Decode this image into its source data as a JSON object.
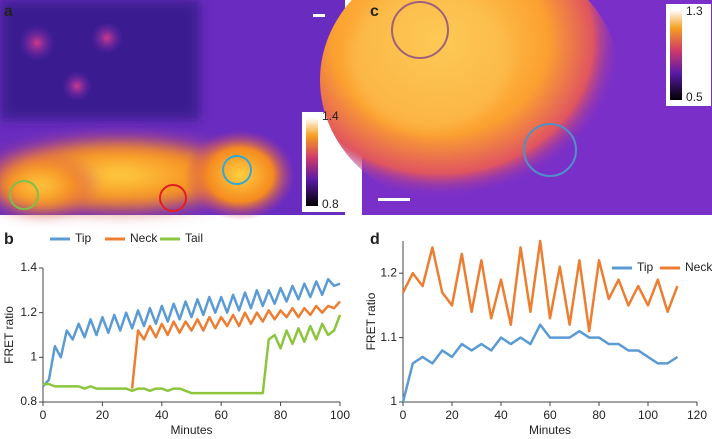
{
  "panels": {
    "a": {
      "label": "a",
      "colorbar": [
        1.4,
        0.8
      ]
    },
    "c": {
      "label": "c",
      "colorbar": [
        1.3,
        0.5
      ]
    }
  },
  "chart_data": [
    {
      "type": "line",
      "panel": "b",
      "x_label": "Minutes",
      "y_label": "FRET ratio",
      "x": [
        0,
        2,
        4,
        6,
        8,
        10,
        12,
        14,
        16,
        18,
        20,
        22,
        24,
        26,
        28,
        30,
        32,
        34,
        36,
        38,
        40,
        42,
        44,
        46,
        48,
        50,
        52,
        54,
        56,
        58,
        60,
        62,
        64,
        66,
        68,
        70,
        72,
        74,
        76,
        78,
        80,
        82,
        84,
        86,
        88,
        90,
        92,
        94,
        96,
        98,
        100
      ],
      "xlim": [
        0,
        100
      ],
      "xticks": [
        0,
        20,
        40,
        60,
        80,
        100
      ],
      "ylim": [
        0.8,
        1.4
      ],
      "yticks": [
        0.8,
        1,
        1.2,
        1.4
      ],
      "series": [
        {
          "name": "Tip",
          "color": "#5b9bd5",
          "values": [
            0.87,
            0.9,
            1.05,
            1.0,
            1.12,
            1.08,
            1.15,
            1.09,
            1.17,
            1.1,
            1.18,
            1.11,
            1.19,
            1.12,
            1.2,
            1.13,
            1.21,
            1.14,
            1.22,
            1.15,
            1.23,
            1.16,
            1.24,
            1.17,
            1.25,
            1.18,
            1.26,
            1.19,
            1.27,
            1.2,
            1.27,
            1.2,
            1.28,
            1.21,
            1.29,
            1.22,
            1.3,
            1.23,
            1.3,
            1.24,
            1.31,
            1.25,
            1.32,
            1.26,
            1.33,
            1.27,
            1.34,
            1.28,
            1.35,
            1.32,
            1.33
          ]
        },
        {
          "name": "Neck",
          "color": "#ed7d31",
          "values": [
            null,
            null,
            null,
            null,
            null,
            null,
            null,
            null,
            null,
            null,
            null,
            null,
            null,
            null,
            null,
            0.86,
            1.12,
            1.08,
            1.14,
            1.09,
            1.15,
            1.1,
            1.16,
            1.11,
            1.16,
            1.12,
            1.17,
            1.12,
            1.18,
            1.13,
            1.18,
            1.14,
            1.19,
            1.14,
            1.2,
            1.15,
            1.2,
            1.16,
            1.21,
            1.17,
            1.21,
            1.18,
            1.22,
            1.18,
            1.22,
            1.19,
            1.23,
            1.2,
            1.23,
            1.22,
            1.25
          ]
        },
        {
          "name": "Tail",
          "color": "#8cc63f",
          "values": [
            0.88,
            0.88,
            0.87,
            0.87,
            0.87,
            0.87,
            0.87,
            0.86,
            0.87,
            0.86,
            0.86,
            0.86,
            0.86,
            0.86,
            0.86,
            0.85,
            0.86,
            0.86,
            0.85,
            0.86,
            0.86,
            0.85,
            0.86,
            0.86,
            0.85,
            0.84,
            0.84,
            0.84,
            0.84,
            0.84,
            0.84,
            0.84,
            0.84,
            0.84,
            0.84,
            0.84,
            0.84,
            0.84,
            1.08,
            1.1,
            1.04,
            1.12,
            1.06,
            1.13,
            1.07,
            1.14,
            1.08,
            1.15,
            1.1,
            1.12,
            1.19
          ]
        }
      ]
    },
    {
      "type": "line",
      "panel": "d",
      "x_label": "Minutes",
      "y_label": "FRET ratio",
      "x": [
        0,
        4,
        8,
        12,
        16,
        20,
        24,
        28,
        32,
        36,
        40,
        44,
        48,
        52,
        56,
        60,
        64,
        68,
        72,
        76,
        80,
        84,
        88,
        92,
        96,
        100,
        104,
        108,
        112
      ],
      "xlim": [
        0,
        120
      ],
      "xticks": [
        0,
        20,
        40,
        60,
        80,
        100,
        120
      ],
      "ylim": [
        1,
        1.25
      ],
      "yticks": [
        1,
        1.1,
        1.2
      ],
      "series": [
        {
          "name": "Tip",
          "color": "#5b9bd5",
          "values": [
            1.0,
            1.06,
            1.07,
            1.06,
            1.08,
            1.07,
            1.09,
            1.08,
            1.09,
            1.08,
            1.1,
            1.09,
            1.1,
            1.09,
            1.12,
            1.1,
            1.1,
            1.1,
            1.11,
            1.1,
            1.1,
            1.09,
            1.09,
            1.08,
            1.08,
            1.07,
            1.06,
            1.06,
            1.07
          ]
        },
        {
          "name": "Neck",
          "color": "#ed7d31",
          "values": [
            1.17,
            1.2,
            1.18,
            1.24,
            1.17,
            1.15,
            1.23,
            1.14,
            1.22,
            1.13,
            1.19,
            1.12,
            1.24,
            1.14,
            1.25,
            1.13,
            1.21,
            1.12,
            1.22,
            1.11,
            1.22,
            1.16,
            1.19,
            1.15,
            1.18,
            1.15,
            1.19,
            1.14,
            1.18
          ]
        }
      ]
    }
  ]
}
